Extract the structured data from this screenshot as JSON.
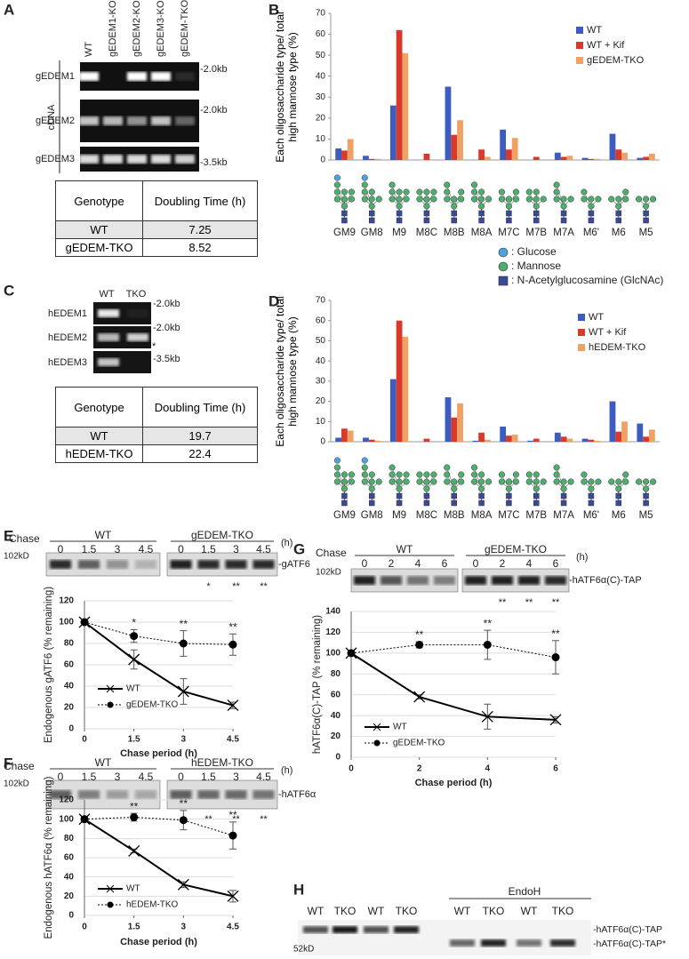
{
  "panel_labels": [
    "A",
    "B",
    "C",
    "D",
    "E",
    "F",
    "G",
    "H"
  ],
  "gel_a": {
    "lanes": [
      "WT",
      "gEDEM1-KO",
      "gEDEM2-KO",
      "gEDEM3-KO",
      "gEDEM-TKO"
    ],
    "side_label": "cDNA",
    "rows": [
      "gEDEM1",
      "gEDEM2",
      "gEDEM3"
    ],
    "sizes": [
      "-2.0kb",
      "-2.0kb",
      "-3.5kb"
    ]
  },
  "table_a": {
    "header": [
      "Genotype",
      "Doubling Time (h)"
    ],
    "rows": [
      [
        "WT",
        7.25
      ],
      [
        "gEDEM-TKO",
        8.52
      ]
    ]
  },
  "gel_c": {
    "lanes": [
      "WT",
      "TKO"
    ],
    "rows": [
      "hEDEM1",
      "hEDEM2",
      "hEDEM3"
    ],
    "sizes": [
      "-2.0kb",
      "-2.0kb",
      "-3.5kb"
    ],
    "note": "*"
  },
  "table_c": {
    "header": [
      "Genotype",
      "Doubling Time (h)"
    ],
    "rows": [
      [
        "WT",
        19.7
      ],
      [
        "hEDEM-TKO",
        22.4
      ]
    ]
  },
  "glycan_legend": [
    ": Glucose",
    ": Mannose",
    ": N-Acetylglucosamine (GlcNAc)"
  ],
  "blot_e": {
    "chase": "Chase",
    "marker": "102kD",
    "groups": [
      "WT",
      "gEDEM-TKO"
    ],
    "times": [
      "0",
      "1.5",
      "3",
      "4.5"
    ],
    "unit": "(h)",
    "band": "-gATF6",
    "stars": [
      "*",
      "**",
      "**"
    ]
  },
  "blot_f": {
    "chase": "Chase",
    "marker": "102kD",
    "groups": [
      "WT",
      "hEDEM-TKO"
    ],
    "times": [
      "0",
      "1.5",
      "3",
      "4.5"
    ],
    "unit": "(h)",
    "band": "-hATF6α",
    "stars": [
      "**",
      "**",
      "**"
    ]
  },
  "blot_g": {
    "chase": "Chase",
    "marker": "102kD",
    "groups": [
      "WT",
      "gEDEM-TKO"
    ],
    "times": [
      "0",
      "2",
      "4",
      "6"
    ],
    "unit": "(h)",
    "band": "-hATF6α(C)-TAP",
    "stars": [
      "**",
      "**",
      "**"
    ]
  },
  "gel_h": {
    "group": "EndoH",
    "lanes": [
      "WT",
      "TKO",
      "WT",
      "TKO",
      "WT",
      "TKO",
      "WT",
      "TKO"
    ],
    "marker": "52kD",
    "bands": [
      "-hATF6α(C)-TAP",
      "-hATF6α(C)-TAP*"
    ]
  },
  "chart_data": [
    {
      "type": "bar",
      "ylabel": "Each oligosaccharide type/ total high mannose type (%)",
      "categories": [
        "GM9",
        "GM8",
        "M9",
        "M8C",
        "M8B",
        "M8A",
        "M7C",
        "M7B",
        "M7A",
        "M6'",
        "M6",
        "M5"
      ],
      "ylim": [
        0,
        70
      ],
      "yticks": [
        0,
        10,
        20,
        30,
        40,
        50,
        60,
        70
      ],
      "series": [
        {
          "name": "WT",
          "color": "#3c5cc0",
          "values": [
            5.5,
            2,
            26,
            0,
            35,
            0,
            14.5,
            0,
            3.5,
            1,
            12.5,
            1
          ]
        },
        {
          "name": "WT + Kif",
          "color": "#d8392b",
          "values": [
            4.5,
            0.5,
            62,
            3,
            12,
            5,
            5,
            1.5,
            1.5,
            0.5,
            5,
            1.5
          ]
        },
        {
          "name": "gEDEM-TKO",
          "color": "#f0a264",
          "values": [
            10,
            0.5,
            51,
            0,
            19,
            1.5,
            10.5,
            0,
            2,
            0.5,
            3.5,
            3
          ]
        }
      ]
    },
    {
      "type": "bar",
      "ylabel": "Each oligosaccharide type/ total high mannose type (%)",
      "categories": [
        "GM9",
        "GM8",
        "M9",
        "M8C",
        "M8B",
        "M8A",
        "M7C",
        "M7B",
        "M7A",
        "M6'",
        "M6",
        "M5"
      ],
      "ylim": [
        0,
        70
      ],
      "yticks": [
        0,
        10,
        20,
        30,
        40,
        50,
        60,
        70
      ],
      "series": [
        {
          "name": "WT",
          "color": "#3c5cc0",
          "values": [
            2,
            2,
            31,
            0,
            22,
            0.5,
            7.5,
            0.5,
            4.5,
            1.5,
            20,
            9
          ]
        },
        {
          "name": "WT + Kif",
          "color": "#d8392b",
          "values": [
            6.5,
            1,
            60,
            1.5,
            12,
            4.5,
            3,
            1.5,
            2.5,
            1,
            5,
            2.5
          ]
        },
        {
          "name": "hEDEM-TKO",
          "color": "#f0a264",
          "values": [
            5.5,
            0.5,
            52,
            0,
            19,
            1,
            3.5,
            0,
            1.5,
            0.5,
            10,
            6
          ]
        }
      ]
    },
    {
      "type": "line",
      "ylabel": "Endogenous gATF6 (% remaining)",
      "xlabel": "Chase period (h)",
      "x": [
        0,
        1.5,
        3,
        4.5
      ],
      "xlim": [
        0,
        4.5
      ],
      "xticks": [
        0,
        1.5,
        3,
        4.5
      ],
      "ylim": [
        0,
        120
      ],
      "yticks": [
        0,
        20,
        40,
        60,
        80,
        100,
        120
      ],
      "grid": true,
      "series": [
        {
          "name": "WT",
          "color": "#000000",
          "linestyle": "solid",
          "marker": "x",
          "values": [
            100,
            65,
            35,
            22
          ],
          "errors": [
            0,
            9,
            12,
            3
          ]
        },
        {
          "name": "gEDEM-TKO",
          "color": "#000000",
          "linestyle": "dotted",
          "marker": "o",
          "values": [
            100,
            87,
            80,
            79
          ],
          "errors": [
            0,
            6,
            12,
            10
          ]
        }
      ],
      "significance": [
        null,
        "*",
        "**",
        "**"
      ]
    },
    {
      "type": "line",
      "ylabel": "Endogenous hATF6α (% remaining)",
      "xlabel": "Chase period (h)",
      "x": [
        0,
        1.5,
        3,
        4.5
      ],
      "xlim": [
        0,
        4.5
      ],
      "xticks": [
        0,
        1.5,
        3,
        4.5
      ],
      "ylim": [
        0,
        120
      ],
      "yticks": [
        0,
        20,
        40,
        60,
        80,
        100,
        120
      ],
      "grid": true,
      "series": [
        {
          "name": "WT",
          "color": "#000000",
          "linestyle": "solid",
          "marker": "x",
          "values": [
            100,
            67,
            32,
            20
          ],
          "errors": [
            0,
            2,
            3,
            6
          ]
        },
        {
          "name": "hEDEM-TKO",
          "color": "#000000",
          "linestyle": "dotted",
          "marker": "o",
          "values": [
            100,
            102,
            99,
            83
          ],
          "errors": [
            2,
            4,
            10,
            14
          ]
        }
      ],
      "significance": [
        null,
        "**",
        "**",
        "**"
      ]
    },
    {
      "type": "line",
      "ylabel": "hATF6α(C)-TAP (% remaining)",
      "xlabel": "Chase period (h)",
      "x": [
        0,
        2,
        4,
        6
      ],
      "xlim": [
        0,
        6
      ],
      "xticks": [
        0,
        2,
        4,
        6
      ],
      "ylim": [
        0,
        140
      ],
      "yticks": [
        0,
        20,
        40,
        60,
        80,
        100,
        120,
        140
      ],
      "grid": true,
      "series": [
        {
          "name": "WT",
          "color": "#000000",
          "linestyle": "solid",
          "marker": "x",
          "values": [
            100,
            58,
            39,
            36
          ],
          "errors": [
            0,
            2,
            12,
            3
          ]
        },
        {
          "name": "gEDEM-TKO",
          "color": "#000000",
          "linestyle": "dotted",
          "marker": "o",
          "values": [
            100,
            108,
            108,
            96
          ],
          "errors": [
            0,
            3,
            14,
            16
          ]
        }
      ],
      "significance": [
        null,
        "**",
        "**",
        "**"
      ]
    }
  ]
}
